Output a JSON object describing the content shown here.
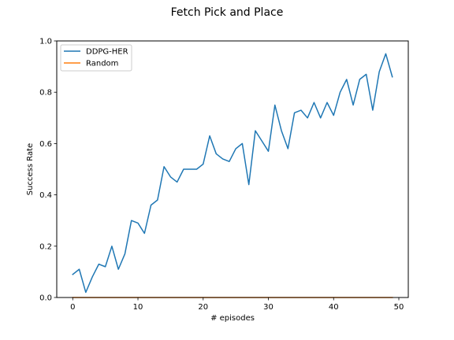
{
  "chart_data": {
    "type": "line",
    "title": "Fetch Pick and Place",
    "xlabel": "# episodes",
    "ylabel": "Success Rate",
    "xlim": [
      -2.45,
      51.45
    ],
    "ylim": [
      0.0,
      1.0
    ],
    "xticks": [
      0,
      10,
      20,
      30,
      40,
      50
    ],
    "yticks": [
      0.0,
      0.2,
      0.4,
      0.6,
      0.8,
      1.0
    ],
    "xtick_labels": [
      "0",
      "10",
      "20",
      "30",
      "40",
      "50"
    ],
    "ytick_labels": [
      "0.0",
      "0.2",
      "0.4",
      "0.6",
      "0.8",
      "1.0"
    ],
    "grid": false,
    "legend_position": "top-left",
    "x": [
      0,
      1,
      2,
      3,
      4,
      5,
      6,
      7,
      8,
      9,
      10,
      11,
      12,
      13,
      14,
      15,
      16,
      17,
      18,
      19,
      20,
      21,
      22,
      23,
      24,
      25,
      26,
      27,
      28,
      29,
      30,
      31,
      32,
      33,
      34,
      35,
      36,
      37,
      38,
      39,
      40,
      41,
      42,
      43,
      44,
      45,
      46,
      47,
      48,
      49
    ],
    "series": [
      {
        "name": "DDPG-HER",
        "color": "#1f77b4",
        "values": [
          0.09,
          0.11,
          0.02,
          0.08,
          0.13,
          0.12,
          0.2,
          0.11,
          0.17,
          0.3,
          0.29,
          0.25,
          0.36,
          0.38,
          0.51,
          0.47,
          0.45,
          0.5,
          0.5,
          0.5,
          0.52,
          0.63,
          0.56,
          0.54,
          0.53,
          0.58,
          0.6,
          0.44,
          0.65,
          0.61,
          0.57,
          0.75,
          0.65,
          0.58,
          0.72,
          0.73,
          0.7,
          0.76,
          0.7,
          0.76,
          0.71,
          0.8,
          0.85,
          0.75,
          0.85,
          0.87,
          0.73,
          0.88,
          0.95,
          0.86
        ]
      },
      {
        "name": "Random",
        "color": "#ff7f0e",
        "values": [
          0,
          0,
          0,
          0,
          0,
          0,
          0,
          0,
          0,
          0,
          0,
          0,
          0,
          0,
          0,
          0,
          0,
          0,
          0,
          0,
          0,
          0,
          0,
          0,
          0,
          0,
          0,
          0,
          0,
          0,
          0,
          0,
          0,
          0,
          0,
          0,
          0,
          0,
          0,
          0,
          0,
          0,
          0,
          0,
          0,
          0,
          0,
          0,
          0,
          0
        ]
      }
    ]
  }
}
